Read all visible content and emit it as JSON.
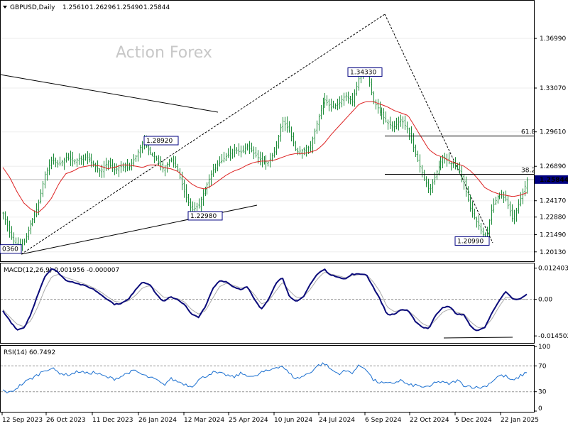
{
  "chart_data": [
    {
      "type": "candlestick",
      "title": "GBPUSD,Daily",
      "ohlc_header": [
        "1.25610",
        "1.26296",
        "1.25490",
        "1.25844"
      ],
      "watermark": "Action Forex",
      "ylim": [
        1.195,
        1.398
      ],
      "y_ticks": [
        "1.36990",
        "1.33070",
        "1.29610",
        "1.26890",
        "1.24170",
        "1.22880",
        "1.21490",
        "1.20130"
      ],
      "current_price": "1.25844",
      "x_ticks": [
        "12 Sep 2023",
        "26 Oct 2023",
        "11 Dec 2023",
        "26 Jan 2024",
        "12 Mar 2024",
        "25 Apr 2024",
        "10 Jun 2024",
        "24 Jul 2024",
        "6 Sep 2024",
        "22 Oct 2024",
        "5 Dec 2024",
        "22 Jan 2025"
      ],
      "series": [
        {
          "name": "price",
          "anchors": [
            1.232,
            1.215,
            1.205,
            1.209,
            1.224,
            1.237,
            1.262,
            1.274,
            1.27,
            1.276,
            1.273,
            1.275,
            1.276,
            1.27,
            1.265,
            1.272,
            1.266,
            1.269,
            1.268,
            1.277,
            1.289,
            1.28,
            1.275,
            1.266,
            1.275,
            1.266,
            1.247,
            1.234,
            1.238,
            1.252,
            1.265,
            1.272,
            1.277,
            1.282,
            1.28,
            1.285,
            1.278,
            1.273,
            1.272,
            1.282,
            1.305,
            1.297,
            1.28,
            1.282,
            1.285,
            1.305,
            1.322,
            1.315,
            1.318,
            1.325,
            1.32,
            1.34,
            1.345,
            1.32,
            1.312,
            1.303,
            1.3,
            1.306,
            1.297,
            1.279,
            1.263,
            1.249,
            1.264,
            1.277,
            1.271,
            1.271,
            1.255,
            1.233,
            1.223,
            1.211,
            1.237,
            1.247,
            1.243,
            1.226,
            1.242,
            1.258
          ]
        },
        {
          "name": "moving-average",
          "anchors": [
            1.268,
            1.26,
            1.249,
            1.24,
            1.235,
            1.232,
            1.237,
            1.244,
            1.255,
            1.263,
            1.265,
            1.268,
            1.269,
            1.27,
            1.269,
            1.267,
            1.268,
            1.27,
            1.27,
            1.269,
            1.268,
            1.27,
            1.27,
            1.268,
            1.267,
            1.265,
            1.26,
            1.255,
            1.252,
            1.251,
            1.254,
            1.258,
            1.262,
            1.265,
            1.267,
            1.27,
            1.272,
            1.273,
            1.273,
            1.274,
            1.276,
            1.278,
            1.279,
            1.279,
            1.28,
            1.282,
            1.287,
            1.294,
            1.3,
            1.306,
            1.312,
            1.318,
            1.32,
            1.32,
            1.318,
            1.316,
            1.313,
            1.311,
            1.309,
            1.3,
            1.291,
            1.282,
            1.278,
            1.276,
            1.273,
            1.271,
            1.269,
            1.265,
            1.259,
            1.252,
            1.249,
            1.247,
            1.246,
            1.245,
            1.246,
            1.248
          ]
        }
      ],
      "annotations": [
        {
          "label": "1.34330",
          "price": 1.3433
        },
        {
          "label": "1.28920",
          "price": 1.2892
        },
        {
          "label": "1.22980",
          "price": 1.2298
        },
        {
          "label": "1.20990",
          "price": 1.2099
        },
        {
          "label": "0360",
          "price": 1.2036
        }
      ],
      "fib_levels": [
        {
          "label": "61.8",
          "price": 1.2928
        },
        {
          "label": "38.2",
          "price": 1.2626
        }
      ]
    },
    {
      "type": "line",
      "title": "MACD(12,26,9) 0.001956 -0.000007",
      "ylim": [
        -0.017,
        0.014
      ],
      "y_ticks": [
        "0.012403",
        "0.00",
        "-0.014502"
      ],
      "series": [
        {
          "name": "MACD",
          "anchors": [
            -0.0045,
            -0.0085,
            -0.0122,
            -0.0115,
            -0.006,
            0.002,
            0.009,
            0.0124,
            0.0105,
            0.0075,
            0.007,
            0.006,
            0.0052,
            0.004,
            0.002,
            0.0,
            -0.002,
            -0.0015,
            0.0,
            0.004,
            0.007,
            0.006,
            0.002,
            -0.001,
            0.001,
            0.0,
            -0.002,
            -0.006,
            -0.007,
            -0.003,
            0.004,
            0.0075,
            0.007,
            0.005,
            0.004,
            0.005,
            0.0,
            -0.004,
            0.0,
            0.006,
            0.009,
            0.001,
            -0.001,
            0.001,
            0.006,
            0.01,
            0.012,
            0.0095,
            0.009,
            0.008,
            0.01,
            0.01,
            0.01,
            0.005,
            0.0,
            -0.006,
            -0.006,
            -0.004,
            -0.0045,
            -0.0085,
            -0.011,
            -0.0115,
            -0.006,
            -0.003,
            -0.003,
            -0.006,
            -0.006,
            -0.011,
            -0.0125,
            -0.011,
            -0.0055,
            -0.0005,
            0.003,
            0.0,
            0.0,
            0.002
          ]
        },
        {
          "name": "Signal",
          "anchors": [
            -0.004,
            -0.007,
            -0.0098,
            -0.0108,
            -0.0085,
            -0.003,
            0.004,
            0.009,
            0.01,
            0.0087,
            0.0078,
            0.0068,
            0.0058,
            0.0046,
            0.003,
            0.001,
            -0.0008,
            -0.0012,
            -0.0006,
            0.0016,
            0.0046,
            0.0055,
            0.0035,
            0.0008,
            0.0008,
            0.0003,
            -0.001,
            -0.004,
            -0.0058,
            -0.0045,
            0.0003,
            0.005,
            0.0064,
            0.0056,
            0.0046,
            0.0048,
            0.002,
            -0.0018,
            -0.0008,
            0.003,
            0.0068,
            0.0035,
            0.0008,
            0.0009,
            0.004,
            0.008,
            0.0108,
            0.01,
            0.0094,
            0.0086,
            0.0094,
            0.0098,
            0.0099,
            0.007,
            0.003,
            -0.003,
            -0.0048,
            -0.0044,
            -0.0044,
            -0.0068,
            -0.0095,
            -0.0108,
            -0.008,
            -0.005,
            -0.0038,
            -0.0052,
            -0.0058,
            -0.009,
            -0.0112,
            -0.011,
            -0.0078,
            -0.003,
            0.001,
            0.0004,
            0.0001,
            -0.0
          ]
        }
      ]
    },
    {
      "type": "line",
      "title": "RSI(14) 60.7492",
      "ylim": [
        0,
        100
      ],
      "y_ticks": [
        "100",
        "70",
        "30",
        "0"
      ],
      "levels": [
        70,
        30
      ],
      "series": [
        {
          "name": "RSI",
          "anchors": [
            32,
            28,
            36,
            44,
            50,
            56,
            64,
            66,
            60,
            56,
            58,
            62,
            58,
            60,
            56,
            52,
            50,
            54,
            60,
            62,
            56,
            52,
            48,
            40,
            50,
            46,
            42,
            38,
            48,
            54,
            60,
            58,
            56,
            52,
            58,
            56,
            52,
            60,
            62,
            68,
            70,
            58,
            50,
            54,
            60,
            70,
            74,
            64,
            58,
            62,
            60,
            70,
            66,
            48,
            44,
            42,
            44,
            48,
            40,
            40,
            38,
            36,
            46,
            44,
            42,
            48,
            40,
            38,
            36,
            38,
            46,
            55,
            54,
            46,
            54,
            60
          ]
        }
      ]
    }
  ],
  "colors": {
    "up": "#1e8c3a",
    "down": "#1e8c3a",
    "ma": "#dd2222",
    "macd": "#0a0a7a",
    "signal": "#aaaaaa",
    "grid": "#cccccc",
    "label_border": "#000080"
  }
}
